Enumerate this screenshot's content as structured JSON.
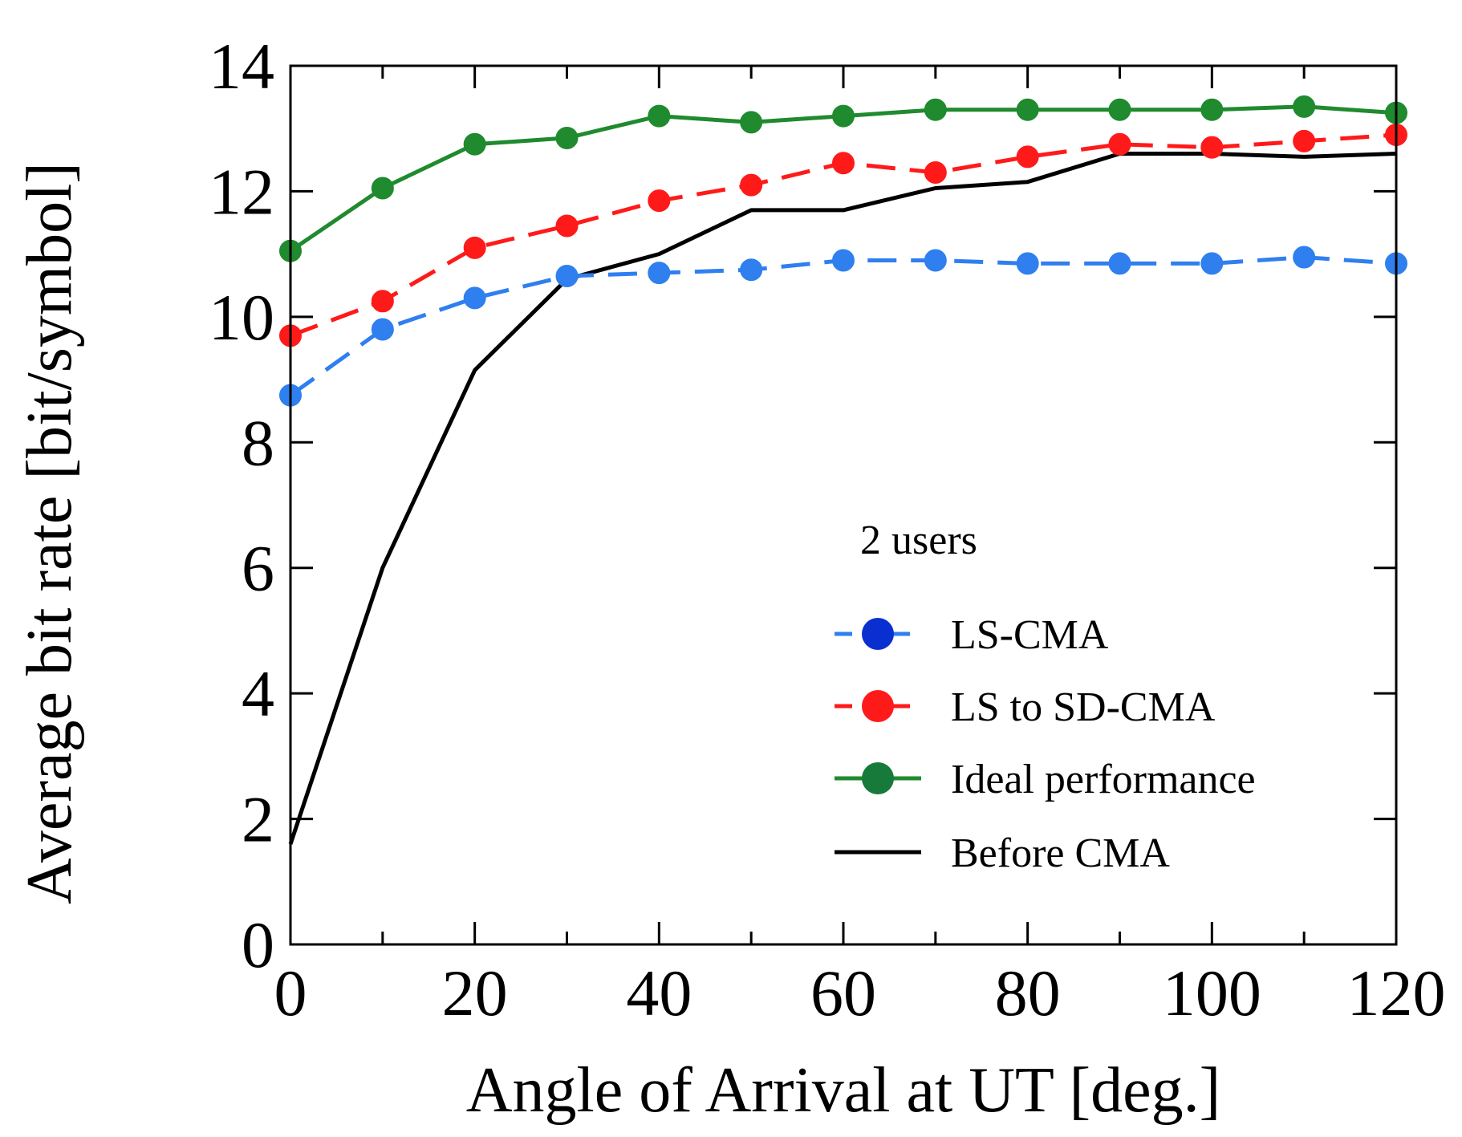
{
  "chart_data": {
    "type": "line",
    "title": "",
    "xlabel": "Angle of Arrival at UT [deg.]",
    "ylabel": "Average bit rate [bit/symbol]",
    "xlim": [
      0,
      120
    ],
    "ylim": [
      0,
      14
    ],
    "x_ticks": [
      0,
      20,
      40,
      60,
      80,
      100,
      120
    ],
    "y_ticks": [
      0,
      2,
      4,
      6,
      8,
      10,
      12,
      14
    ],
    "x_tick_labels": [
      "0",
      "20",
      "40",
      "60",
      "80",
      "100",
      "120"
    ],
    "y_tick_labels": [
      "0",
      "2",
      "4",
      "6",
      "8",
      "10",
      "12",
      "14"
    ],
    "grid": false,
    "legend": {
      "placement": "lower-right",
      "title": "2 users"
    },
    "x": [
      0,
      10,
      20,
      30,
      40,
      50,
      60,
      70,
      80,
      90,
      100,
      110,
      120
    ],
    "series": [
      {
        "name": "LS-CMA",
        "color": "#2f7fef",
        "legend_marker_color": "#0a2fd0",
        "line_style": "dashed",
        "marker": "circle",
        "values": [
          8.75,
          9.8,
          10.3,
          10.65,
          10.7,
          10.75,
          10.9,
          10.9,
          10.85,
          10.85,
          10.85,
          10.95,
          10.85
        ]
      },
      {
        "name": "LS to SD-CMA",
        "color": "#ff1a1a",
        "legend_marker_color": "#ff1a1a",
        "line_style": "dashed",
        "marker": "circle",
        "values": [
          9.7,
          10.25,
          11.1,
          11.45,
          11.85,
          12.1,
          12.45,
          12.3,
          12.55,
          12.75,
          12.7,
          12.8,
          12.9
        ]
      },
      {
        "name": "Ideal performance",
        "color": "#1f8a2e",
        "legend_marker_color": "#177a3a",
        "line_style": "solid",
        "marker": "circle",
        "values": [
          11.05,
          12.05,
          12.75,
          12.85,
          13.2,
          13.1,
          13.2,
          13.3,
          13.3,
          13.3,
          13.3,
          13.35,
          13.25
        ]
      },
      {
        "name": "Before CMA",
        "color": "#000000",
        "legend_marker_color": "#000000",
        "line_style": "solid",
        "marker": "none",
        "values": [
          1.6,
          6.0,
          9.15,
          10.6,
          11.0,
          11.7,
          11.7,
          12.05,
          12.15,
          12.6,
          12.6,
          12.55,
          12.6
        ]
      }
    ]
  }
}
